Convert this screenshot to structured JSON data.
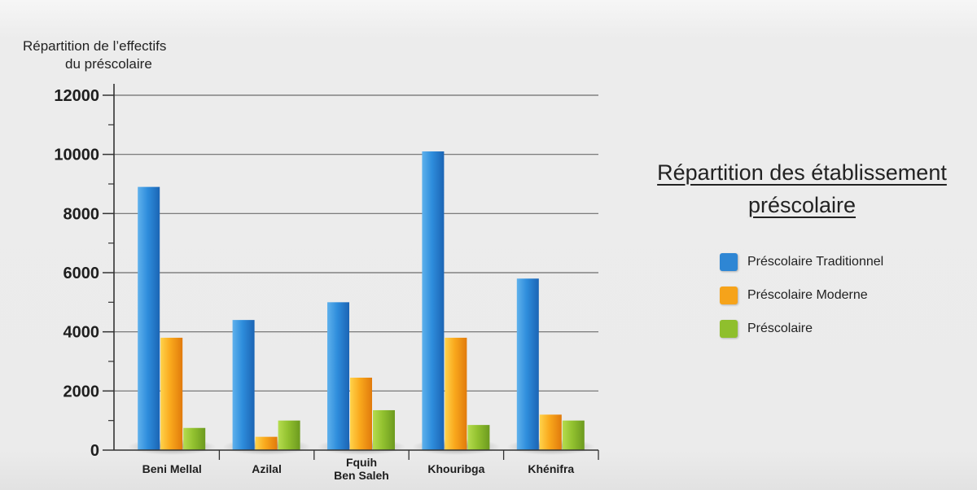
{
  "chart_data": {
    "type": "bar",
    "title": "Répartition des établissement préscolaire",
    "ylabel_line1": "Répartition de l’effectifs",
    "ylabel_line2": "du préscolaire",
    "xlabel": "",
    "categories": [
      "Beni Mellal",
      "Azilal",
      "Fquih Ben Saleh",
      "Khouribga",
      "Khénifra"
    ],
    "category_lines": [
      [
        "Beni Mellal"
      ],
      [
        "Azilal"
      ],
      [
        "Fquih",
        "Ben Saleh"
      ],
      [
        "Khouribga"
      ],
      [
        "Khénifra"
      ]
    ],
    "series": [
      {
        "name": "Préscolaire Traditionnel",
        "color": "#2e86d4",
        "values": [
          8900,
          4400,
          5000,
          10100,
          5800
        ]
      },
      {
        "name": "Préscolaire Moderne",
        "color": "#f6a31a",
        "values": [
          3800,
          450,
          2450,
          3800,
          1200
        ]
      },
      {
        "name": "Préscolaire",
        "color": "#8fbf2d",
        "values": [
          750,
          1000,
          1350,
          850,
          1000
        ]
      }
    ],
    "ylim": [
      0,
      12000
    ],
    "yticks": [
      0,
      2000,
      4000,
      6000,
      8000,
      10000,
      12000
    ],
    "grid": true,
    "legend_position": "right"
  }
}
